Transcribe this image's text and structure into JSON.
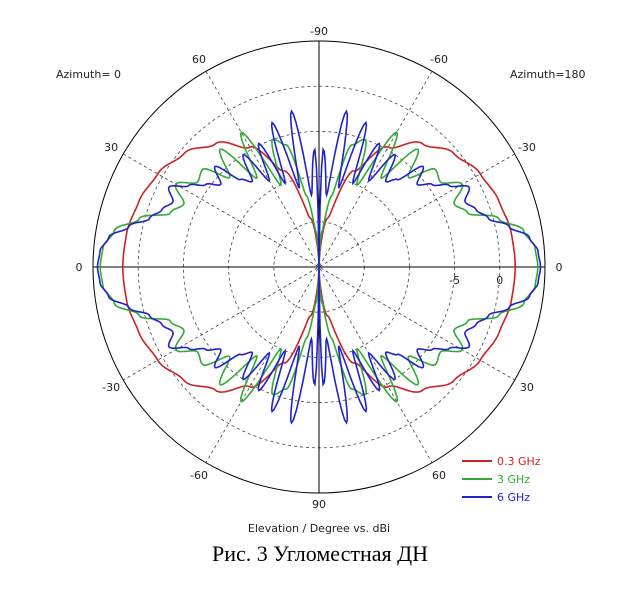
{
  "caption": "Рис. 3 Угломестная ДН",
  "chart_data": {
    "type": "polar",
    "xlabel": "Elevation / Degree vs. dBi",
    "corner_left": "Azimuth= 0",
    "corner_right": "Azimuth=180",
    "angle_labels_left": [
      "-90",
      "-60",
      "-30",
      "0",
      "30",
      "60",
      "90"
    ],
    "angle_labels_right": [
      "-60",
      "-30",
      "0",
      "30",
      "60"
    ],
    "radial_tick_labels": [
      "-5",
      "0"
    ],
    "radial_range_dbi": [
      -20,
      5
    ],
    "grid": true,
    "legend_position": "bottom-right",
    "series": [
      {
        "name": "0.3 GHz",
        "color": "#cc2222",
        "elevation_deg": [
          0,
          10,
          20,
          30,
          40,
          50,
          60,
          70,
          80,
          90
        ],
        "gain_dbi": [
          1.7,
          1.6,
          1.2,
          0.6,
          -0.5,
          -2.2,
          -4.7,
          -8.7,
          -14.5,
          -20
        ]
      },
      {
        "name": "3 GHz",
        "color": "#33aa33",
        "elevation_deg": [
          0,
          5,
          10,
          15,
          20,
          25,
          30,
          35,
          40,
          45,
          50,
          55,
          60,
          65,
          70,
          75,
          80,
          85,
          90
        ],
        "gain_dbi": [
          4.2,
          4.0,
          3.0,
          0.6,
          -2.5,
          -3.5,
          -1.7,
          -3.6,
          -3.2,
          -6.0,
          -3.0,
          -8.0,
          -2.8,
          -10.0,
          -5.0,
          -6.0,
          -12.0,
          -16.0,
          -20
        ]
      },
      {
        "name": "6 GHz",
        "color": "#2222cc",
        "elevation_deg": [
          0,
          4,
          8,
          12,
          16,
          20,
          24,
          28,
          32,
          36,
          40,
          44,
          48,
          52,
          56,
          60,
          64,
          68,
          72,
          76,
          80,
          84,
          88,
          90
        ],
        "gain_dbi": [
          4.5,
          4.3,
          3.5,
          1.5,
          -0.5,
          -1.5,
          -2.3,
          -1.2,
          -3.0,
          -4.5,
          -5.8,
          -4.0,
          -7.0,
          -8.0,
          -5.0,
          -9.0,
          -4.8,
          -10.0,
          -3.2,
          -11.0,
          -2.5,
          -12.0,
          -7.0,
          -20
        ]
      }
    ]
  }
}
